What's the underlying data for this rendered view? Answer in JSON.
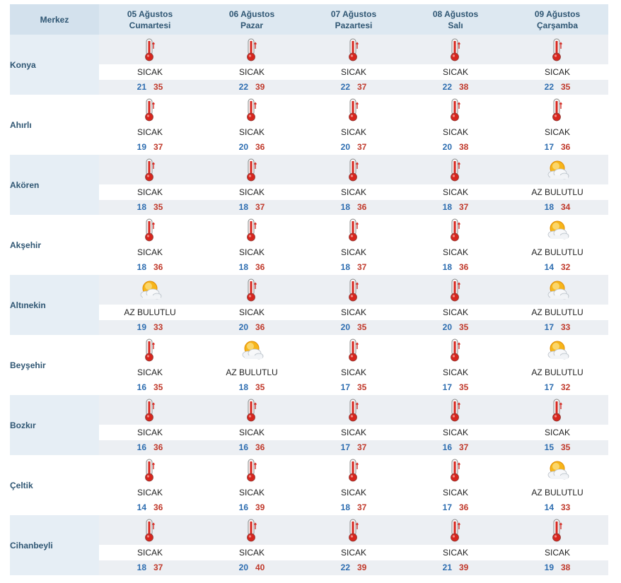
{
  "header": {
    "city_col": "Merkez",
    "days": [
      {
        "date": "05 Ağustos",
        "weekday": "Cumartesi"
      },
      {
        "date": "06 Ağustos",
        "weekday": "Pazar"
      },
      {
        "date": "07 Ağustos",
        "weekday": "Pazartesi"
      },
      {
        "date": "08 Ağustos",
        "weekday": "Salı"
      },
      {
        "date": "09 Ağustos",
        "weekday": "Çarşamba"
      }
    ]
  },
  "colors": {
    "min_temp": "#2d6db0",
    "max_temp": "#c0392b",
    "header_bg": "#dde8f1",
    "row_alt_bg": "#eceff3",
    "city_text": "#2f5673"
  },
  "icons": {
    "SICAK": "thermometer-hot-icon",
    "AZ BULUTLU": "partly-cloudy-sun-icon"
  },
  "rows": [
    {
      "city": "Konya",
      "days": [
        {
          "desc": "SICAK",
          "icon": "thermometer-hot-icon",
          "min": "21",
          "max": "35"
        },
        {
          "desc": "SICAK",
          "icon": "thermometer-hot-icon",
          "min": "22",
          "max": "39"
        },
        {
          "desc": "SICAK",
          "icon": "thermometer-hot-icon",
          "min": "22",
          "max": "37"
        },
        {
          "desc": "SICAK",
          "icon": "thermometer-hot-icon",
          "min": "22",
          "max": "38"
        },
        {
          "desc": "SICAK",
          "icon": "thermometer-hot-icon",
          "min": "22",
          "max": "35"
        }
      ]
    },
    {
      "city": "Ahırlı",
      "days": [
        {
          "desc": "SICAK",
          "icon": "thermometer-hot-icon",
          "min": "19",
          "max": "37"
        },
        {
          "desc": "SICAK",
          "icon": "thermometer-hot-icon",
          "min": "20",
          "max": "36"
        },
        {
          "desc": "SICAK",
          "icon": "thermometer-hot-icon",
          "min": "20",
          "max": "37"
        },
        {
          "desc": "SICAK",
          "icon": "thermometer-hot-icon",
          "min": "20",
          "max": "38"
        },
        {
          "desc": "SICAK",
          "icon": "thermometer-hot-icon",
          "min": "17",
          "max": "36"
        }
      ]
    },
    {
      "city": "Akören",
      "days": [
        {
          "desc": "SICAK",
          "icon": "thermometer-hot-icon",
          "min": "18",
          "max": "35"
        },
        {
          "desc": "SICAK",
          "icon": "thermometer-hot-icon",
          "min": "18",
          "max": "37"
        },
        {
          "desc": "SICAK",
          "icon": "thermometer-hot-icon",
          "min": "18",
          "max": "36"
        },
        {
          "desc": "SICAK",
          "icon": "thermometer-hot-icon",
          "min": "18",
          "max": "37"
        },
        {
          "desc": "AZ BULUTLU",
          "icon": "partly-cloudy-sun-icon",
          "min": "18",
          "max": "34"
        }
      ]
    },
    {
      "city": "Akşehir",
      "days": [
        {
          "desc": "SICAK",
          "icon": "thermometer-hot-icon",
          "min": "18",
          "max": "36"
        },
        {
          "desc": "SICAK",
          "icon": "thermometer-hot-icon",
          "min": "18",
          "max": "36"
        },
        {
          "desc": "SICAK",
          "icon": "thermometer-hot-icon",
          "min": "18",
          "max": "37"
        },
        {
          "desc": "SICAK",
          "icon": "thermometer-hot-icon",
          "min": "18",
          "max": "36"
        },
        {
          "desc": "AZ BULUTLU",
          "icon": "partly-cloudy-sun-icon",
          "min": "14",
          "max": "32"
        }
      ]
    },
    {
      "city": "Altınekin",
      "days": [
        {
          "desc": "AZ BULUTLU",
          "icon": "partly-cloudy-sun-icon",
          "min": "19",
          "max": "33"
        },
        {
          "desc": "SICAK",
          "icon": "thermometer-hot-icon",
          "min": "20",
          "max": "36"
        },
        {
          "desc": "SICAK",
          "icon": "thermometer-hot-icon",
          "min": "20",
          "max": "35"
        },
        {
          "desc": "SICAK",
          "icon": "thermometer-hot-icon",
          "min": "20",
          "max": "35"
        },
        {
          "desc": "AZ BULUTLU",
          "icon": "partly-cloudy-sun-icon",
          "min": "17",
          "max": "33"
        }
      ]
    },
    {
      "city": "Beyşehir",
      "days": [
        {
          "desc": "SICAK",
          "icon": "thermometer-hot-icon",
          "min": "16",
          "max": "35"
        },
        {
          "desc": "AZ BULUTLU",
          "icon": "partly-cloudy-sun-icon",
          "min": "18",
          "max": "35"
        },
        {
          "desc": "SICAK",
          "icon": "thermometer-hot-icon",
          "min": "17",
          "max": "35"
        },
        {
          "desc": "SICAK",
          "icon": "thermometer-hot-icon",
          "min": "17",
          "max": "35"
        },
        {
          "desc": "AZ BULUTLU",
          "icon": "partly-cloudy-sun-icon",
          "min": "17",
          "max": "32"
        }
      ]
    },
    {
      "city": "Bozkır",
      "days": [
        {
          "desc": "SICAK",
          "icon": "thermometer-hot-icon",
          "min": "16",
          "max": "36"
        },
        {
          "desc": "SICAK",
          "icon": "thermometer-hot-icon",
          "min": "16",
          "max": "36"
        },
        {
          "desc": "SICAK",
          "icon": "thermometer-hot-icon",
          "min": "17",
          "max": "37"
        },
        {
          "desc": "SICAK",
          "icon": "thermometer-hot-icon",
          "min": "16",
          "max": "37"
        },
        {
          "desc": "SICAK",
          "icon": "thermometer-hot-icon",
          "min": "15",
          "max": "35"
        }
      ]
    },
    {
      "city": "Çeltik",
      "days": [
        {
          "desc": "SICAK",
          "icon": "thermometer-hot-icon",
          "min": "14",
          "max": "36"
        },
        {
          "desc": "SICAK",
          "icon": "thermometer-hot-icon",
          "min": "16",
          "max": "39"
        },
        {
          "desc": "SICAK",
          "icon": "thermometer-hot-icon",
          "min": "18",
          "max": "37"
        },
        {
          "desc": "SICAK",
          "icon": "thermometer-hot-icon",
          "min": "17",
          "max": "36"
        },
        {
          "desc": "AZ BULUTLU",
          "icon": "partly-cloudy-sun-icon",
          "min": "14",
          "max": "33"
        }
      ]
    },
    {
      "city": "Cihanbeyli",
      "days": [
        {
          "desc": "SICAK",
          "icon": "thermometer-hot-icon",
          "min": "18",
          "max": "37"
        },
        {
          "desc": "SICAK",
          "icon": "thermometer-hot-icon",
          "min": "20",
          "max": "40"
        },
        {
          "desc": "SICAK",
          "icon": "thermometer-hot-icon",
          "min": "22",
          "max": "39"
        },
        {
          "desc": "SICAK",
          "icon": "thermometer-hot-icon",
          "min": "21",
          "max": "39"
        },
        {
          "desc": "SICAK",
          "icon": "thermometer-hot-icon",
          "min": "19",
          "max": "38"
        }
      ]
    }
  ]
}
